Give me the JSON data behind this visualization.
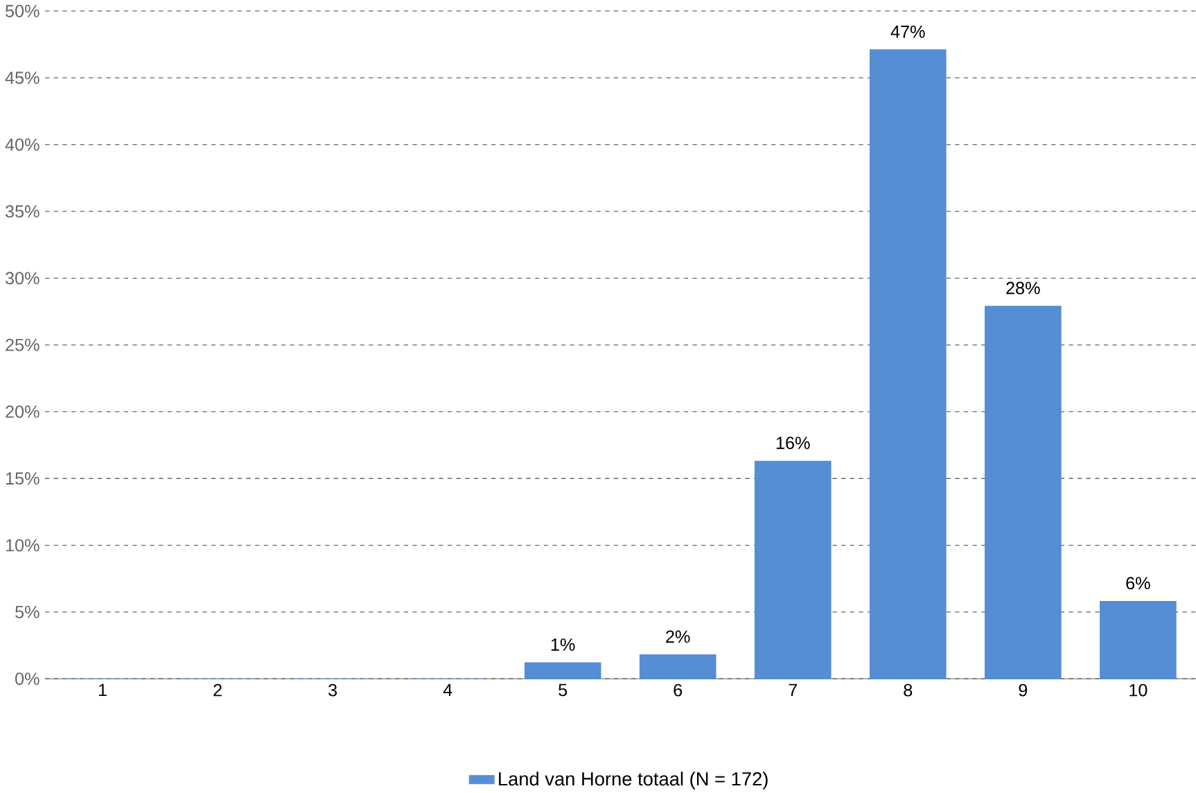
{
  "chart_data": {
    "type": "bar",
    "categories": [
      "1",
      "2",
      "3",
      "4",
      "5",
      "6",
      "7",
      "8",
      "9",
      "10"
    ],
    "series": [
      {
        "name": "Land van Horne totaal (N = 172)",
        "color": "#558ed5",
        "values": [
          0,
          0,
          0,
          0,
          1.2,
          1.8,
          16.3,
          47.1,
          27.9,
          5.8
        ],
        "value_labels": [
          null,
          null,
          null,
          null,
          "1%",
          "2%",
          "16%",
          "47%",
          "28%",
          "6%"
        ]
      }
    ],
    "ylim": [
      0,
      50
    ],
    "yticks": [
      {
        "value": 0,
        "label": "0%"
      },
      {
        "value": 5,
        "label": "5%"
      },
      {
        "value": 10,
        "label": "10%"
      },
      {
        "value": 15,
        "label": "15%"
      },
      {
        "value": 20,
        "label": "20%"
      },
      {
        "value": 25,
        "label": "25%"
      },
      {
        "value": 30,
        "label": "30%"
      },
      {
        "value": 35,
        "label": "35%"
      },
      {
        "value": 40,
        "label": "40%"
      },
      {
        "value": 45,
        "label": "45%"
      },
      {
        "value": 50,
        "label": "50%"
      }
    ],
    "grid": "y",
    "legend": "bottom"
  }
}
